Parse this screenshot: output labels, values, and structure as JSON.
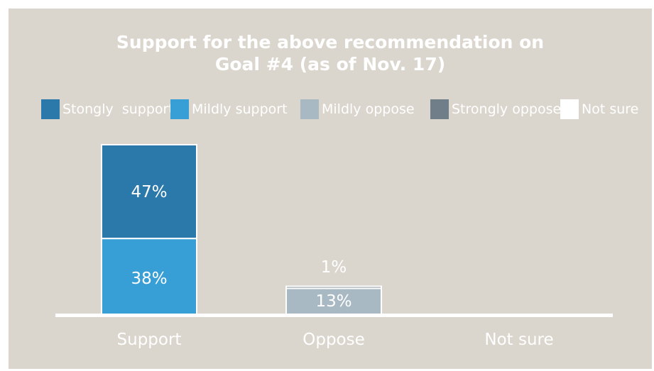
{
  "chart_data": {
    "type": "bar",
    "stacked": true,
    "title": "Support for the above recommendation on\nGoal #4 (as of Nov. 17)",
    "categories": [
      "Support",
      "Oppose",
      "Not sure"
    ],
    "series": [
      {
        "name": "Stongly  support",
        "color": "#2b79ab",
        "values": [
          47,
          0,
          0
        ]
      },
      {
        "name": "Mildly support",
        "color": "#379fd6",
        "values": [
          38,
          0,
          0
        ]
      },
      {
        "name": "Mildly oppose",
        "color": "#a9b9c3",
        "values": [
          0,
          13,
          0
        ]
      },
      {
        "name": "Strongly oppose",
        "color": "#6f7e89",
        "values": [
          0,
          1,
          0
        ]
      },
      {
        "name": "Not sure",
        "color": "#ffffff",
        "values": [
          0,
          0,
          0
        ]
      }
    ],
    "data_labels": [
      {
        "category": "Support",
        "series": "Stongly  support",
        "text": "47%"
      },
      {
        "category": "Support",
        "series": "Mildly support",
        "text": "38%"
      },
      {
        "category": "Oppose",
        "series": "Mildly oppose",
        "text": "13%"
      },
      {
        "category": "Oppose",
        "series": "Strongly oppose",
        "text": "1%"
      }
    ],
    "ylim": [
      0,
      85
    ],
    "legend_position": "top",
    "grid": false
  },
  "colors": {
    "background": "#dbd6cd",
    "text": "#ffffff",
    "baseline": "#ffffff"
  }
}
